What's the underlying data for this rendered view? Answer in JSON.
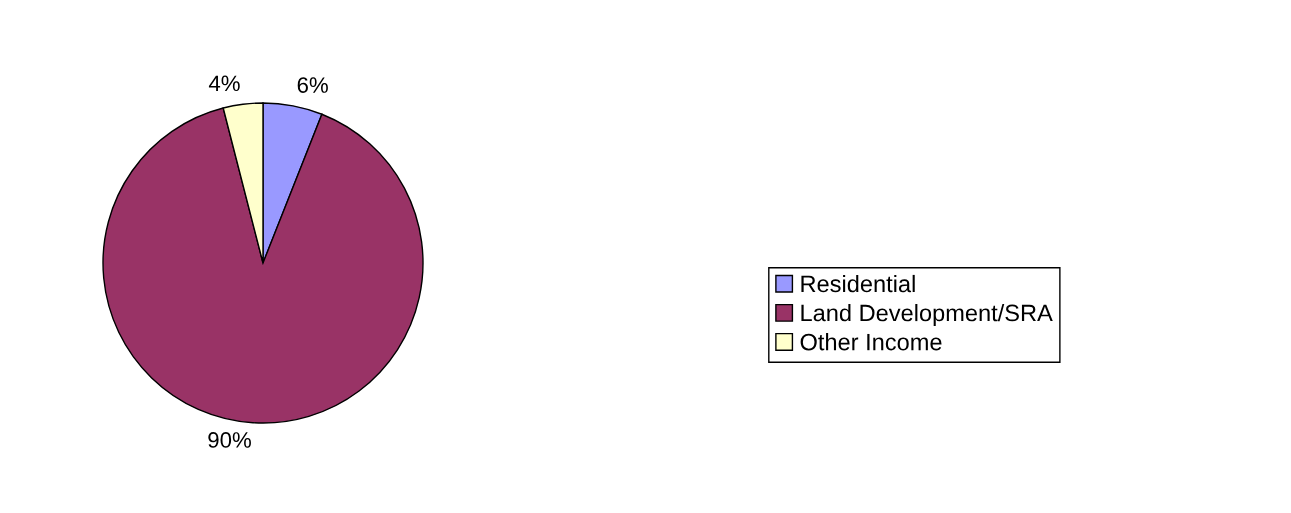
{
  "chart_data": {
    "type": "pie",
    "categories": [
      "Residential",
      "Land Development/SRA",
      "Other Income"
    ],
    "values": [
      6,
      90,
      4
    ],
    "colors": [
      "#9999ff",
      "#993366",
      "#ffffcc"
    ],
    "value_labels": [
      "6%",
      "90%",
      "4%"
    ],
    "legend": "right"
  }
}
